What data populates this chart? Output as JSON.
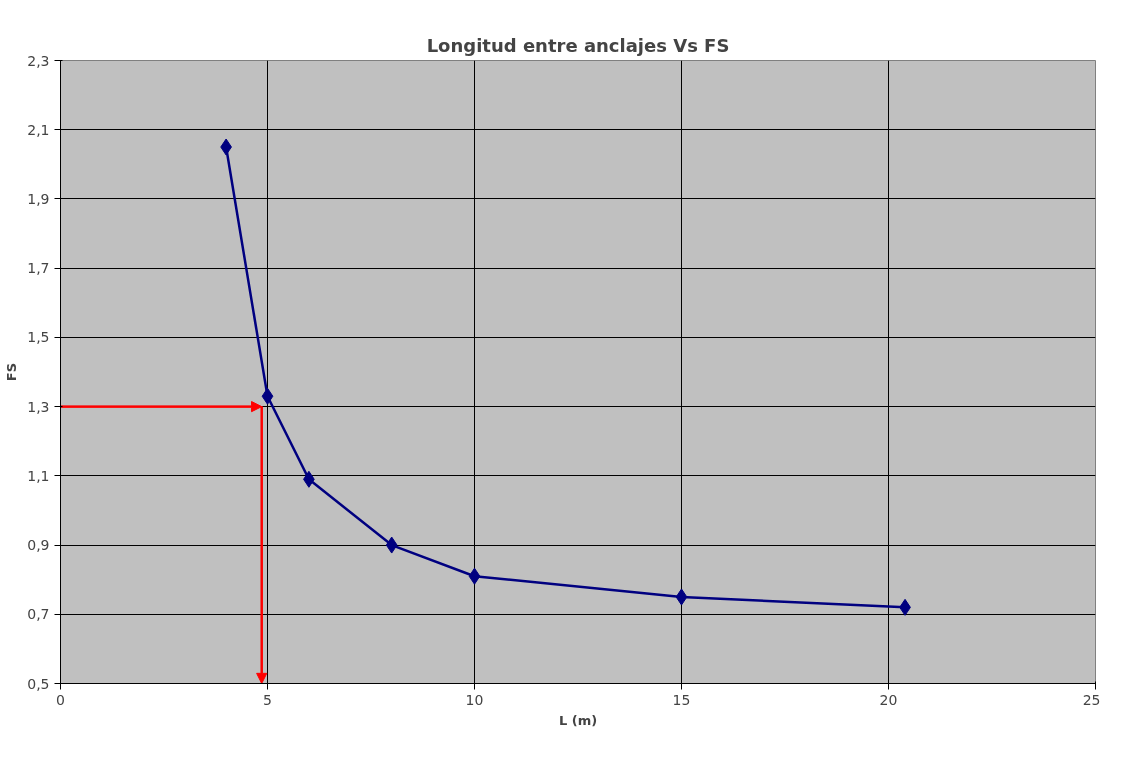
{
  "chart_data": {
    "type": "line",
    "title": "Longitud entre anclajes Vs FS",
    "xlabel": "L (m)",
    "ylabel": "FS",
    "x": [
      4,
      5,
      6,
      8,
      10,
      15,
      20.4
    ],
    "series": [
      {
        "color": "#000080",
        "values": [
          2.05,
          1.33,
          1.09,
          0.9,
          0.81,
          0.75,
          0.72
        ]
      }
    ],
    "marker": "diamond",
    "line_style": "solid",
    "grid": true,
    "xlim": [
      0,
      25
    ],
    "xticks": [
      0,
      5,
      10,
      15,
      20,
      25
    ],
    "ylim": [
      0.5,
      2.3
    ],
    "yticks": [
      {
        "value": 0.5,
        "label": "0,5"
      },
      {
        "value": 0.7,
        "label": "0,7"
      },
      {
        "value": 0.9,
        "label": "0,9"
      },
      {
        "value": 1.1,
        "label": "1,1"
      },
      {
        "value": 1.3,
        "label": "1,3"
      },
      {
        "value": 1.5,
        "label": "1,5"
      },
      {
        "value": 1.7,
        "label": "1,7"
      },
      {
        "value": 1.9,
        "label": "1,9"
      },
      {
        "value": 2.1,
        "label": "2,1"
      },
      {
        "value": 2.3,
        "label": "2,3"
      }
    ],
    "ref_lines": [
      {
        "axis": "y",
        "value": 1.3,
        "color": "#ff0000"
      },
      {
        "axis": "x",
        "value": 4.86,
        "color": "#ff0000"
      }
    ]
  }
}
